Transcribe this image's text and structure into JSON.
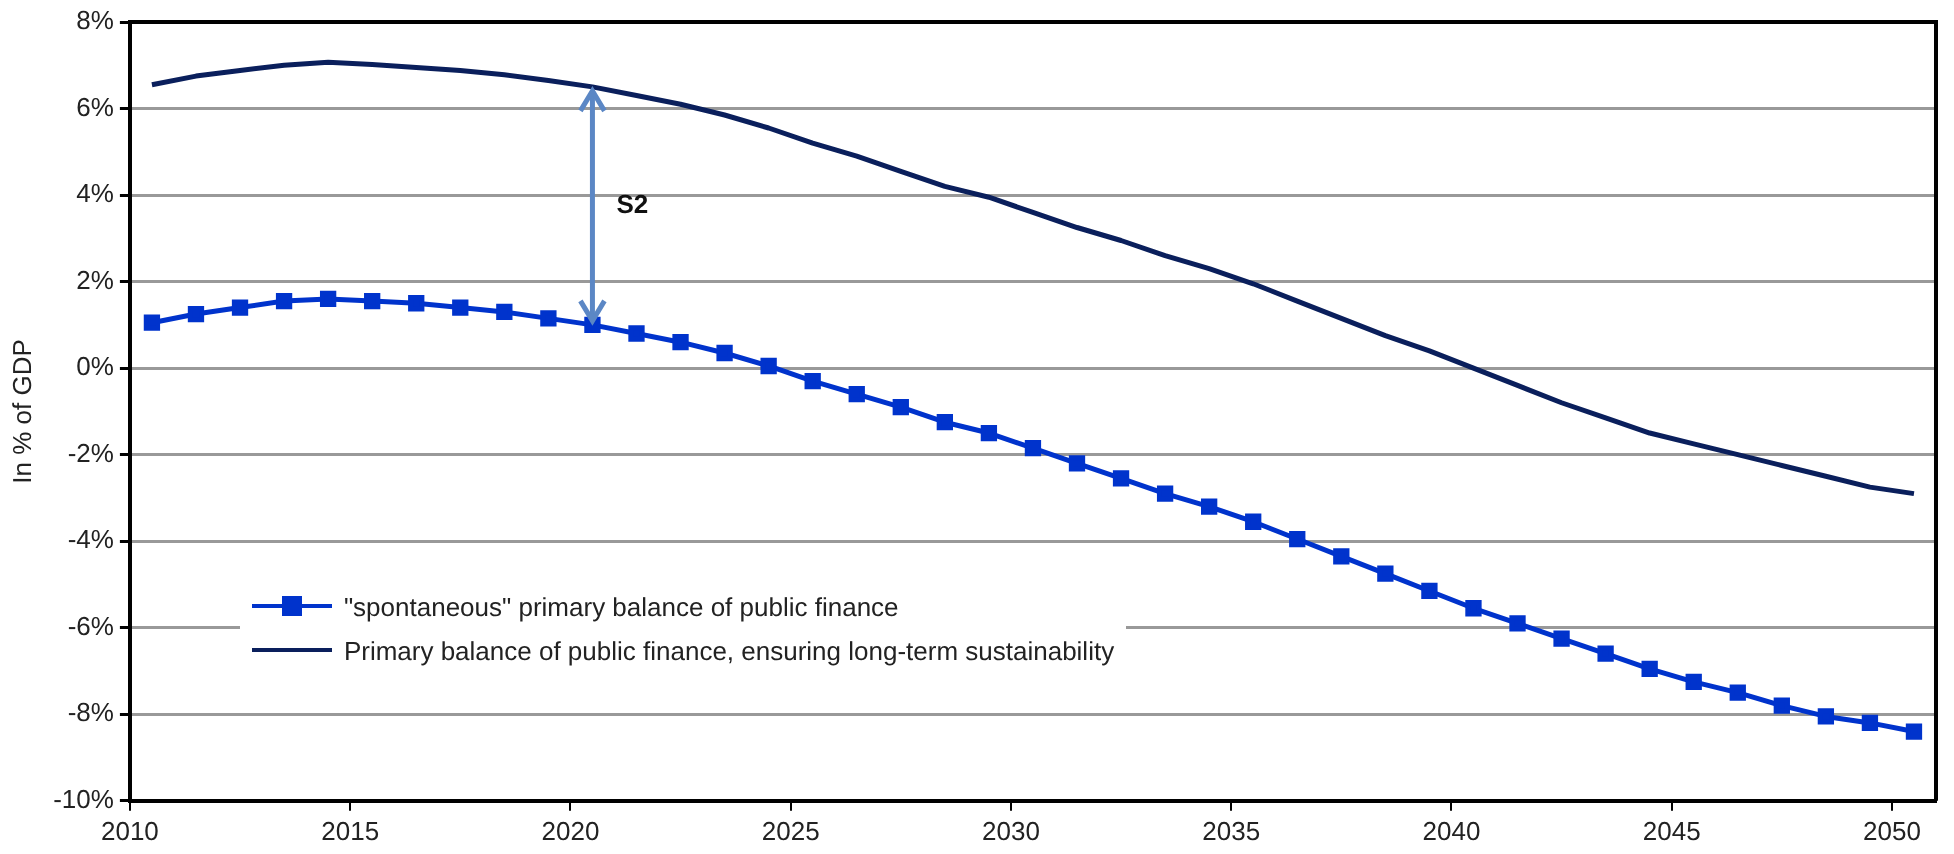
{
  "chart_data": {
    "type": "line",
    "ylabel": "In % of GDP",
    "xlim": [
      2010,
      2051
    ],
    "xticks": [
      2010,
      2015,
      2020,
      2025,
      2030,
      2035,
      2040,
      2045,
      2050
    ],
    "ylim": [
      -10,
      8
    ],
    "yticks": [
      {
        "value": -10,
        "label": "-10%"
      },
      {
        "value": -8,
        "label": "-8%"
      },
      {
        "value": -6,
        "label": "-6%"
      },
      {
        "value": -4,
        "label": "-4%"
      },
      {
        "value": -2,
        "label": "-2%"
      },
      {
        "value": 0,
        "label": "0%"
      },
      {
        "value": 2,
        "label": "2%"
      },
      {
        "value": 4,
        "label": "4%"
      },
      {
        "value": 6,
        "label": "6%"
      },
      {
        "value": 8,
        "label": "8%"
      }
    ],
    "x": [
      2010.5,
      2011.5,
      2012.5,
      2013.5,
      2014.5,
      2015.5,
      2016.5,
      2017.5,
      2018.5,
      2019.5,
      2020.5,
      2021.5,
      2022.5,
      2023.5,
      2024.5,
      2025.5,
      2026.5,
      2027.5,
      2028.5,
      2029.5,
      2030.5,
      2031.5,
      2032.5,
      2033.5,
      2034.5,
      2035.5,
      2036.5,
      2037.5,
      2038.5,
      2039.5,
      2040.5,
      2041.5,
      2042.5,
      2043.5,
      2044.5,
      2045.5,
      2046.5,
      2047.5,
      2048.5,
      2049.5,
      2050.5
    ],
    "series": [
      {
        "name": "\"spontaneous\" primary balance of public finance",
        "color": "#0033cc",
        "marker": "square",
        "values": [
          1.05,
          1.25,
          1.4,
          1.55,
          1.6,
          1.55,
          1.5,
          1.4,
          1.3,
          1.15,
          1.0,
          0.8,
          0.6,
          0.35,
          0.05,
          -0.3,
          -0.6,
          -0.9,
          -1.25,
          -1.5,
          -1.85,
          -2.2,
          -2.55,
          -2.9,
          -3.2,
          -3.55,
          -3.95,
          -4.35,
          -4.75,
          -5.15,
          -5.55,
          -5.9,
          -6.25,
          -6.6,
          -6.95,
          -7.25,
          -7.5,
          -7.8,
          -8.05,
          -8.2,
          -8.4
        ]
      },
      {
        "name": "Primary balance of public finance, ensuring long-term sustainability",
        "color": "#0a1f5c",
        "marker": "none",
        "values": [
          6.55,
          6.75,
          6.88,
          7.0,
          7.07,
          7.02,
          6.95,
          6.88,
          6.78,
          6.65,
          6.5,
          6.3,
          6.1,
          5.85,
          5.55,
          5.2,
          4.9,
          4.55,
          4.2,
          3.95,
          3.6,
          3.25,
          2.95,
          2.6,
          2.3,
          1.95,
          1.55,
          1.15,
          0.75,
          0.4,
          0.0,
          -0.4,
          -0.8,
          -1.15,
          -1.5,
          -1.75,
          -2.0,
          -2.25,
          -2.5,
          -2.75,
          -2.9
        ]
      }
    ],
    "annotations": [
      "S2"
    ],
    "grid": "y",
    "legend": "bottom left"
  }
}
